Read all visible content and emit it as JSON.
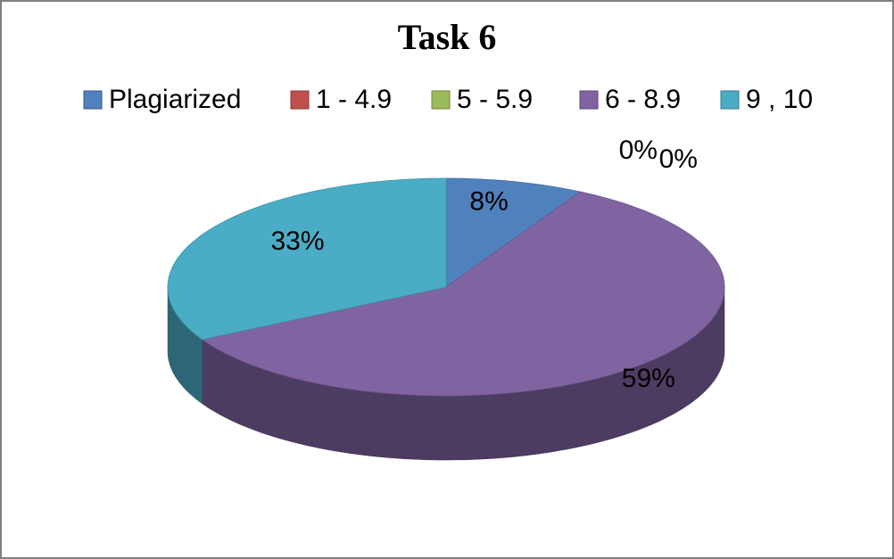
{
  "chart_data": {
    "type": "pie",
    "title": "Task 6",
    "categories": [
      "Plagiarized",
      "1 - 4.9",
      "5 - 5.9",
      "6 - 8.9",
      "9 , 10"
    ],
    "values": [
      8,
      0,
      0,
      59,
      33
    ],
    "value_labels": [
      "8%",
      "0%",
      "0%",
      "59%",
      "33%"
    ],
    "colors": [
      "#4f81bd",
      "#c0504d",
      "#9bbb59",
      "#8064a2",
      "#4bacc6"
    ],
    "legend": "top"
  }
}
